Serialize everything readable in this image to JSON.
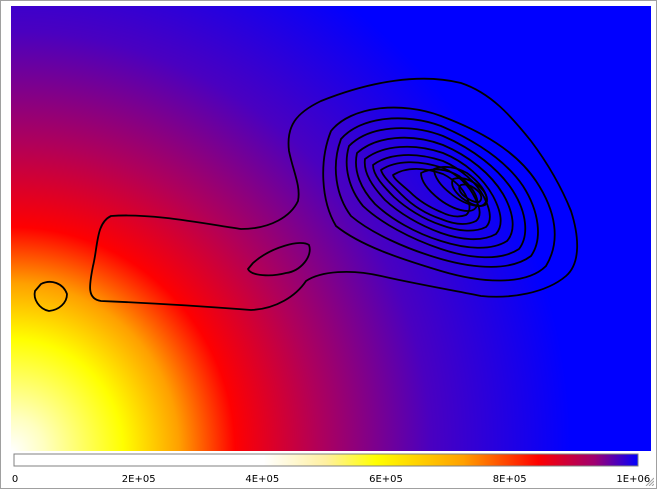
{
  "chart_data": {
    "type": "heatmap",
    "title": "",
    "xlabel": "",
    "ylabel": "",
    "grid": false,
    "legend": "none",
    "colormap": [
      "#ffffff",
      "#ffff00",
      "#ff0000",
      "#0000ff"
    ],
    "colorbar": {
      "range": [
        0,
        1200000
      ],
      "ticks": [
        {
          "value": 0,
          "label": "0"
        },
        {
          "value": 200000,
          "label": "2E+05"
        },
        {
          "value": 400000,
          "label": "4E+05"
        },
        {
          "value": 600000,
          "label": "6E+05"
        },
        {
          "value": 800000,
          "label": "8E+05"
        },
        {
          "value": 1000000,
          "label": "1E+06"
        }
      ]
    },
    "contour_color": "#000000",
    "contour_levels": 12
  }
}
